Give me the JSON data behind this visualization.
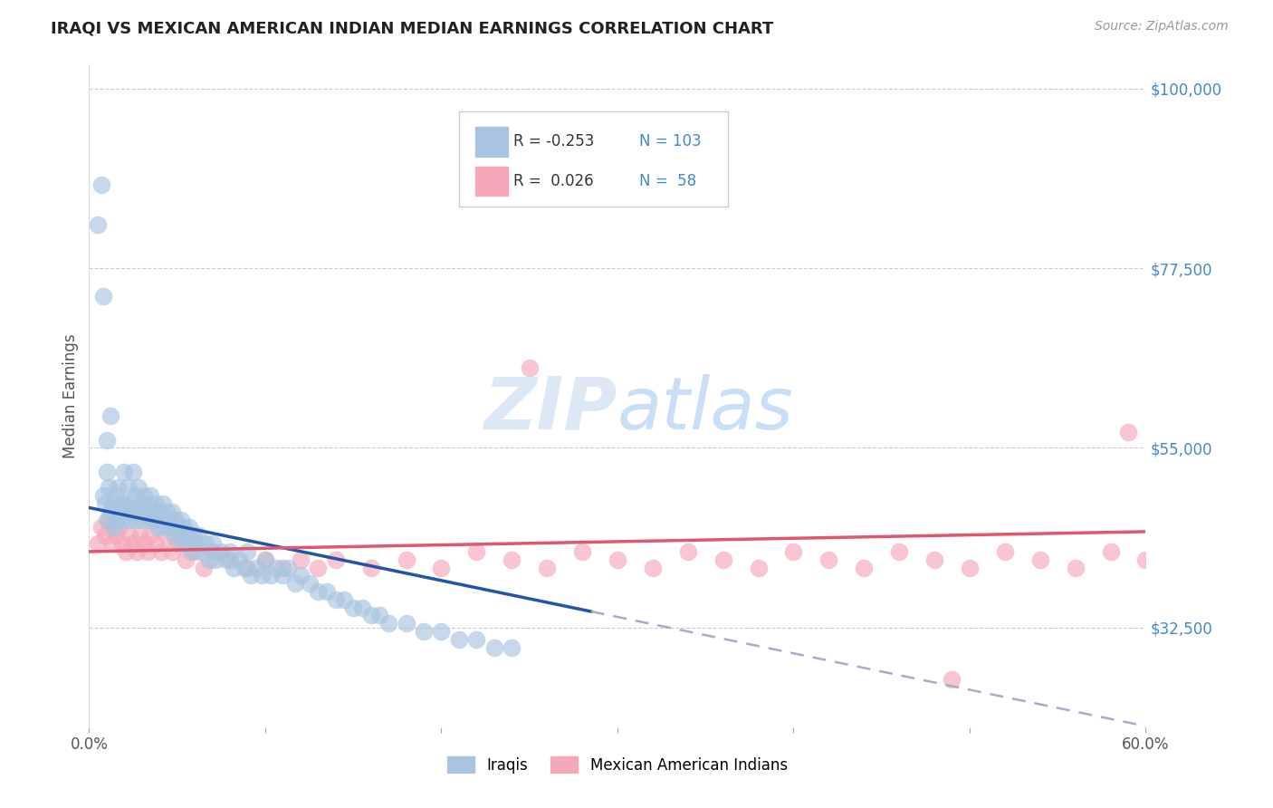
{
  "title": "IRAQI VS MEXICAN AMERICAN INDIAN MEDIAN EARNINGS CORRELATION CHART",
  "source_text": "Source: ZipAtlas.com",
  "ylabel": "Median Earnings",
  "xlim": [
    0.0,
    0.6
  ],
  "ylim": [
    20000,
    103000
  ],
  "yticks": [
    32500,
    55000,
    77500,
    100000
  ],
  "ytick_labels": [
    "$32,500",
    "$55,000",
    "$77,500",
    "$100,000"
  ],
  "xticks": [
    0.0,
    0.1,
    0.2,
    0.3,
    0.4,
    0.5,
    0.6
  ],
  "xtick_labels": [
    "0.0%",
    "",
    "",
    "",
    "",
    "",
    "60.0%"
  ],
  "iraqis_color": "#a8c4e0",
  "mexicans_color": "#f4a8b8",
  "blue_line_color": "#2255aa",
  "pink_line_color": "#e05570",
  "dashed_line_color": "#aaaacc",
  "watermark_color": "#dce8f5",
  "background_color": "#ffffff",
  "iraqis_x": [
    0.005,
    0.007,
    0.008,
    0.009,
    0.01,
    0.01,
    0.011,
    0.012,
    0.013,
    0.014,
    0.015,
    0.015,
    0.016,
    0.017,
    0.018,
    0.019,
    0.02,
    0.02,
    0.021,
    0.022,
    0.023,
    0.024,
    0.025,
    0.025,
    0.026,
    0.027,
    0.028,
    0.029,
    0.03,
    0.03,
    0.031,
    0.032,
    0.033,
    0.034,
    0.035,
    0.036,
    0.037,
    0.038,
    0.039,
    0.04,
    0.041,
    0.042,
    0.043,
    0.044,
    0.045,
    0.046,
    0.047,
    0.048,
    0.049,
    0.05,
    0.051,
    0.052,
    0.053,
    0.054,
    0.055,
    0.056,
    0.057,
    0.058,
    0.059,
    0.06,
    0.062,
    0.064,
    0.066,
    0.068,
    0.07,
    0.072,
    0.075,
    0.078,
    0.08,
    0.082,
    0.085,
    0.088,
    0.09,
    0.092,
    0.095,
    0.098,
    0.1,
    0.103,
    0.106,
    0.11,
    0.113,
    0.117,
    0.12,
    0.125,
    0.13,
    0.135,
    0.14,
    0.145,
    0.15,
    0.155,
    0.16,
    0.165,
    0.17,
    0.18,
    0.19,
    0.2,
    0.21,
    0.22,
    0.23,
    0.24,
    0.008,
    0.01,
    0.012
  ],
  "iraqis_y": [
    83000,
    88000,
    49000,
    48000,
    52000,
    46000,
    50000,
    47000,
    48000,
    45000,
    49000,
    46000,
    50000,
    47000,
    48000,
    46000,
    52000,
    48000,
    47000,
    50000,
    46000,
    48000,
    52000,
    47000,
    49000,
    46000,
    50000,
    47000,
    48000,
    46000,
    49000,
    47000,
    48000,
    46000,
    49000,
    47000,
    46000,
    48000,
    45000,
    47000,
    46000,
    48000,
    45000,
    47000,
    46000,
    45000,
    47000,
    44000,
    46000,
    45000,
    44000,
    46000,
    43000,
    45000,
    44000,
    43000,
    45000,
    42000,
    44000,
    43000,
    44000,
    42000,
    43000,
    41000,
    43000,
    41000,
    42000,
    41000,
    42000,
    40000,
    41000,
    40000,
    42000,
    39000,
    40000,
    39000,
    41000,
    39000,
    40000,
    39000,
    40000,
    38000,
    39000,
    38000,
    37000,
    37000,
    36000,
    36000,
    35000,
    35000,
    34000,
    34000,
    33000,
    33000,
    32000,
    32000,
    31000,
    31000,
    30000,
    30000,
    74000,
    56000,
    59000
  ],
  "mexicans_x": [
    0.005,
    0.007,
    0.009,
    0.011,
    0.013,
    0.015,
    0.017,
    0.019,
    0.021,
    0.023,
    0.025,
    0.027,
    0.029,
    0.031,
    0.033,
    0.035,
    0.038,
    0.041,
    0.044,
    0.047,
    0.05,
    0.055,
    0.06,
    0.065,
    0.07,
    0.08,
    0.09,
    0.1,
    0.11,
    0.12,
    0.13,
    0.14,
    0.16,
    0.18,
    0.2,
    0.22,
    0.24,
    0.26,
    0.28,
    0.3,
    0.32,
    0.34,
    0.36,
    0.38,
    0.4,
    0.42,
    0.44,
    0.46,
    0.48,
    0.5,
    0.52,
    0.54,
    0.56,
    0.58,
    0.6,
    0.49,
    0.59,
    0.25
  ],
  "mexicans_y": [
    43000,
    45000,
    44000,
    46000,
    43000,
    44000,
    45000,
    43000,
    42000,
    44000,
    43000,
    42000,
    44000,
    43000,
    42000,
    44000,
    43000,
    42000,
    44000,
    42000,
    43000,
    41000,
    42000,
    40000,
    42000,
    41000,
    40000,
    41000,
    40000,
    41000,
    40000,
    41000,
    40000,
    41000,
    40000,
    42000,
    41000,
    40000,
    42000,
    41000,
    40000,
    42000,
    41000,
    40000,
    42000,
    41000,
    40000,
    42000,
    41000,
    40000,
    42000,
    41000,
    40000,
    42000,
    41000,
    26000,
    57000,
    65000
  ]
}
